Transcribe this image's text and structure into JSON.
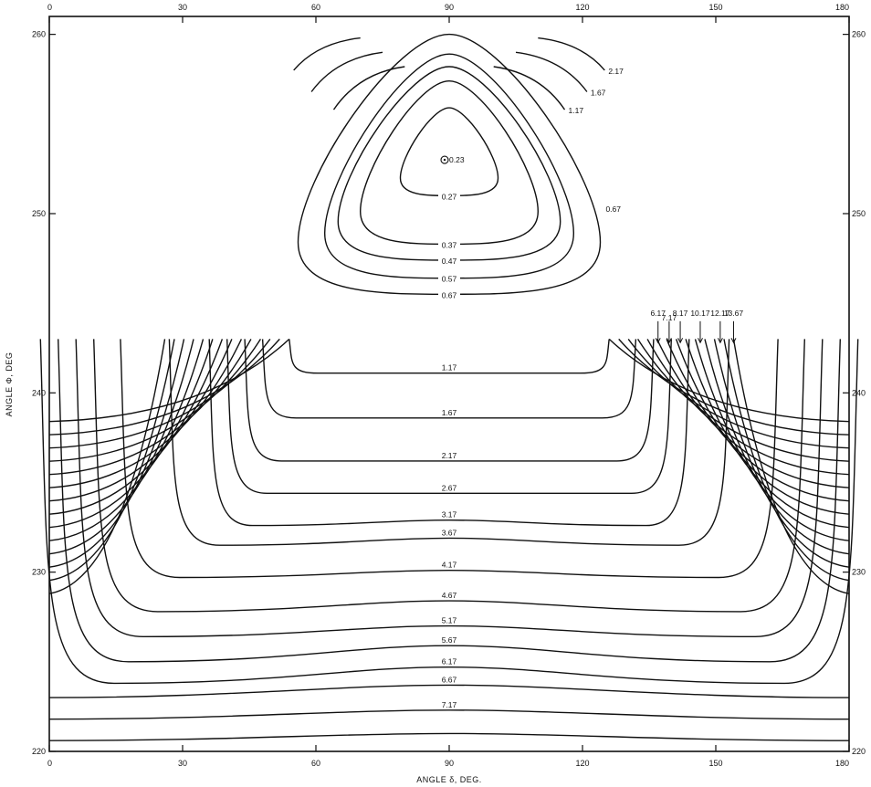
{
  "chart_data": {
    "type": "line",
    "subtype": "contour",
    "title": "",
    "xlabel": "ANGLE δ, DEG.",
    "ylabel": "ANGLE Φ, DEG",
    "xlim": [
      0,
      180
    ],
    "ylim": [
      220,
      261
    ],
    "x_ticks": [
      "0",
      "30",
      "60",
      "90",
      "120",
      "150",
      "180"
    ],
    "y_ticks": [
      "220",
      "230",
      "240",
      "250",
      "260"
    ],
    "grid": false,
    "minimum": {
      "x": 90,
      "y": 253,
      "label": "0.23"
    },
    "annotation_arrows": {
      "y_label": 244.1,
      "y_tip": 242.8
    },
    "top_contours": [
      {
        "label": "0.27",
        "x_half": 11,
        "y_top": 255.9,
        "y_bot": 251.0
      },
      {
        "label": "0.37",
        "x_half": 20,
        "y_top": 257.4,
        "y_bot": 248.3
      },
      {
        "label": "0.47",
        "x_half": 25,
        "y_top": 258.2,
        "y_bot": 247.4
      },
      {
        "label": "0.57",
        "x_half": 28,
        "y_top": 258.9,
        "y_bot": 246.4
      },
      {
        "label": "0.67",
        "x_half": 34,
        "y_top": 260.0,
        "y_bot": 245.5
      }
    ],
    "outer_arcs": [
      {
        "label": "1.17",
        "x0": 100,
        "x1": 116,
        "y0": 255.8,
        "y1": 258.2
      },
      {
        "label": "1.67",
        "x0": 105,
        "x1": 121,
        "y0": 256.8,
        "y1": 259.0
      },
      {
        "label": "2.17",
        "x0": 110,
        "x1": 125,
        "y0": 258.0,
        "y1": 259.8
      }
    ],
    "bottom_contours": [
      {
        "label": "1.17",
        "x_half": 36,
        "y_mid": 241.1,
        "y_edge": 241.1
      },
      {
        "label": "1.67",
        "x_half": 42,
        "y_mid": 238.6,
        "y_edge": 238.6
      },
      {
        "label": "2.17",
        "x_half": 46,
        "y_mid": 236.2,
        "y_edge": 236.2
      },
      {
        "label": "2.67",
        "x_half": 50,
        "y_mid": 234.4,
        "y_edge": 234.4
      },
      {
        "label": "3.17",
        "x_half": 54,
        "y_mid": 232.9,
        "y_edge": 232.6
      },
      {
        "label": "3.67",
        "x_half": 63,
        "y_mid": 231.9,
        "y_edge": 231.5
      },
      {
        "label": "4.17",
        "x_half": 74,
        "y_mid": 230.1,
        "y_edge": 229.7
      },
      {
        "label": "4.67",
        "x_half": 80,
        "y_mid": 228.4,
        "y_edge": 227.8
      },
      {
        "label": "5.17",
        "x_half": 84,
        "y_mid": 227.0,
        "y_edge": 226.4
      },
      {
        "label": "5.67",
        "x_half": 88,
        "y_mid": 225.9,
        "y_edge": 225.0
      },
      {
        "label": "6.17",
        "x_half": 92,
        "y_mid": 224.7,
        "y_edge": 223.8
      },
      {
        "label": "6.67",
        "x_half": 95,
        "y_mid": 223.7,
        "y_edge": 223.0
      },
      {
        "label": "7.17",
        "x_half": 95,
        "y_mid": 222.3,
        "y_edge": 221.8
      },
      {
        "label": "",
        "x_half": 95,
        "y_mid": 221.0,
        "y_edge": 220.6
      }
    ],
    "flank_contours": [
      {
        "label": "6.17",
        "x_top": 137,
        "y_edge": 238.4
      },
      {
        "label": "7.17",
        "x_top": 139.5,
        "y_edge": 237.2
      },
      {
        "label": "8.17",
        "x_top": 142,
        "y_edge": 236.0
      },
      {
        "label": "",
        "x_top": 144,
        "y_edge": 234.8
      },
      {
        "label": "10.17",
        "x_top": 146.5,
        "y_edge": 233.6
      },
      {
        "label": "",
        "x_top": 148.5,
        "y_edge": 232.4
      },
      {
        "label": "12.17",
        "x_top": 151,
        "y_edge": 231.2
      },
      {
        "label": "",
        "x_top": 152.5,
        "y_edge": 230.0
      },
      {
        "label": "13.67",
        "x_top": 154,
        "y_edge": 228.8
      }
    ]
  }
}
